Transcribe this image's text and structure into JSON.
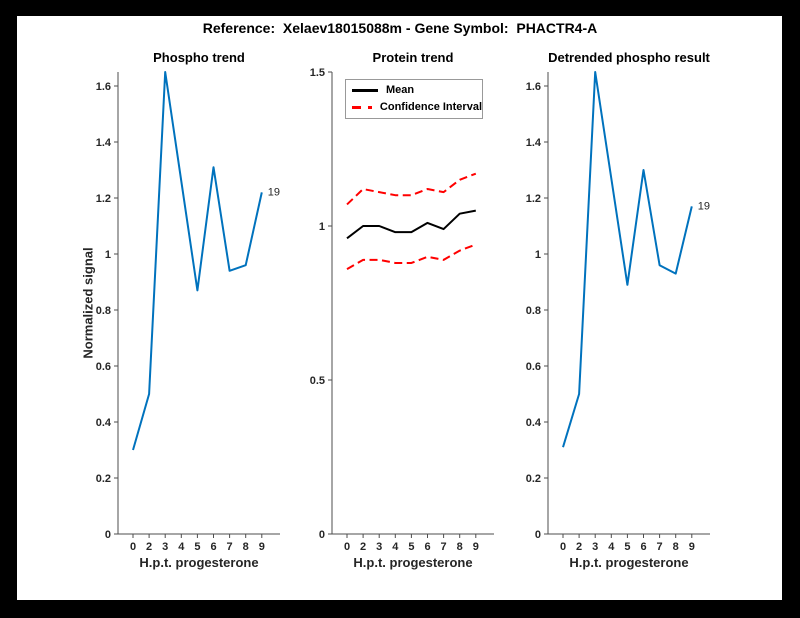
{
  "figure": {
    "title": "Reference:  Xelaev18015088m - Gene Symbol:  PHACTR4-A",
    "background": "#ffffff",
    "frame_color": "#000000",
    "axis_color": "#4d4d4d",
    "text_color": "#262626"
  },
  "chart_data": [
    {
      "type": "line",
      "title": "Phospho trend",
      "xlabel": "H.p.t. progesterone",
      "ylabel": "Normalized signal",
      "categories": [
        "0",
        "2",
        "3",
        "4",
        "5",
        "6",
        "7",
        "8",
        "9"
      ],
      "yticks": [
        "0",
        "0.2",
        "0.4",
        "0.6",
        "0.8",
        "1",
        "1.2",
        "1.4",
        "1.6"
      ],
      "ylim": [
        0,
        1.65
      ],
      "grid": false,
      "end_label": "19",
      "series": [
        {
          "name": "phospho-signal",
          "color": "#0072BD",
          "dash": null,
          "width": 2,
          "values": [
            0.3,
            0.5,
            1.65,
            1.26,
            0.87,
            1.31,
            0.94,
            0.96,
            1.22
          ]
        }
      ]
    },
    {
      "type": "line",
      "title": "Protein trend",
      "xlabel": "H.p.t. progesterone",
      "ylabel": "",
      "categories": [
        "0",
        "2",
        "3",
        "4",
        "5",
        "6",
        "7",
        "8",
        "9"
      ],
      "yticks": [
        "0",
        "0.5",
        "1",
        "1.5"
      ],
      "ylim": [
        0,
        1.5
      ],
      "grid": false,
      "legend": {
        "position": "northwest",
        "entries": [
          "Mean",
          "Confidence Interval"
        ]
      },
      "series": [
        {
          "name": "mean",
          "color": "#000000",
          "dash": null,
          "width": 2,
          "values": [
            0.96,
            1.0,
            1.0,
            0.98,
            0.98,
            1.01,
            0.99,
            1.04,
            1.05
          ]
        },
        {
          "name": "ci-upper",
          "color": "#FF0000",
          "dash": "8 4.5",
          "width": 2,
          "values": [
            1.07,
            1.12,
            1.11,
            1.1,
            1.1,
            1.12,
            1.11,
            1.15,
            1.17
          ]
        },
        {
          "name": "ci-lower",
          "color": "#FF0000",
          "dash": "8 4.5",
          "width": 2,
          "values": [
            0.86,
            0.89,
            0.89,
            0.88,
            0.88,
            0.9,
            0.89,
            0.92,
            0.94
          ]
        }
      ]
    },
    {
      "type": "line",
      "title": "Detrended phospho result",
      "xlabel": "H.p.t. progesterone",
      "ylabel": "",
      "categories": [
        "0",
        "2",
        "3",
        "4",
        "5",
        "6",
        "7",
        "8",
        "9"
      ],
      "yticks": [
        "0",
        "0.2",
        "0.4",
        "0.6",
        "0.8",
        "1",
        "1.2",
        "1.4",
        "1.6"
      ],
      "ylim": [
        0,
        1.65
      ],
      "grid": false,
      "end_label": "19",
      "series": [
        {
          "name": "detrended-phospho-signal",
          "color": "#0072BD",
          "dash": null,
          "width": 2,
          "values": [
            0.31,
            0.5,
            1.65,
            1.27,
            0.89,
            1.3,
            0.96,
            0.93,
            1.17
          ]
        }
      ]
    }
  ]
}
